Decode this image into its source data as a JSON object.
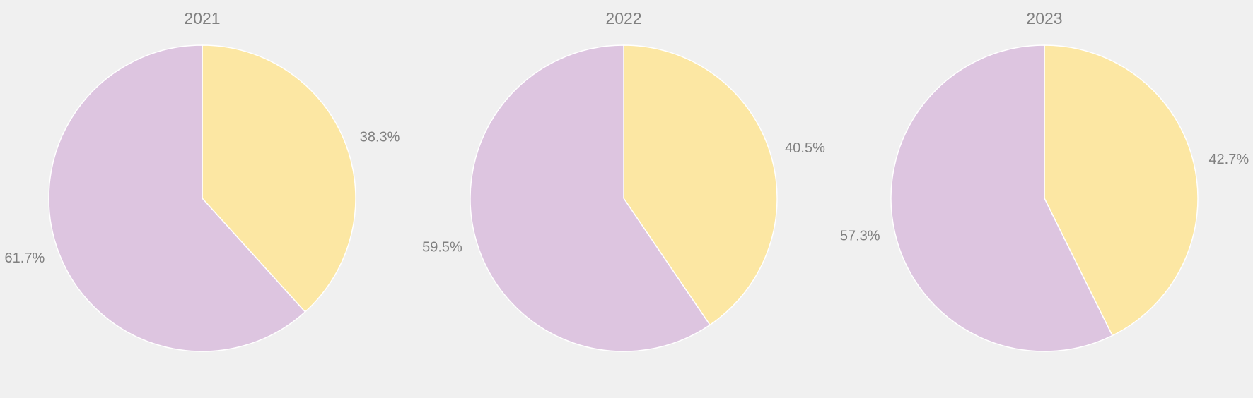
{
  "chart_data": [
    {
      "type": "pie",
      "title": "2021",
      "slices": [
        {
          "label": "38.3%",
          "value": 38.3,
          "color": "#fce7a3"
        },
        {
          "label": "61.7%",
          "value": 61.7,
          "color": "#ddc5e0"
        }
      ],
      "start_angle_deg": 90,
      "direction": "clockwise"
    },
    {
      "type": "pie",
      "title": "2022",
      "slices": [
        {
          "label": "40.5%",
          "value": 40.5,
          "color": "#fce7a3"
        },
        {
          "label": "59.5%",
          "value": 59.5,
          "color": "#ddc5e0"
        }
      ],
      "start_angle_deg": 90,
      "direction": "clockwise"
    },
    {
      "type": "pie",
      "title": "2023",
      "slices": [
        {
          "label": "42.7%",
          "value": 42.7,
          "color": "#fce7a3"
        },
        {
          "label": "57.3%",
          "value": 57.3,
          "color": "#ddc5e0"
        }
      ],
      "start_angle_deg": 90,
      "direction": "clockwise"
    }
  ],
  "colors": {
    "background": "#f0f0f0",
    "text": "#808080",
    "slice_border": "#ffffff"
  }
}
